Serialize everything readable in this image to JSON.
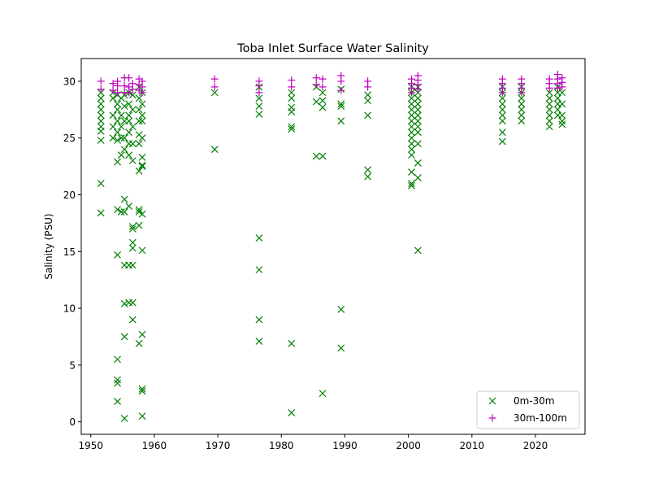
{
  "chart_data": {
    "type": "scatter",
    "title": "Toba Inlet Surface Water Salinity",
    "xlabel": "",
    "ylabel": "Salinity (PSU)",
    "xlim": [
      1948.5,
      2027.8
    ],
    "ylim": [
      -1.1,
      32.0
    ],
    "xticks": [
      1950,
      1960,
      1970,
      1980,
      1990,
      2000,
      2010,
      2020
    ],
    "yticks": [
      0,
      5,
      10,
      15,
      20,
      25,
      30
    ],
    "grid": false,
    "legend_position": "lower-right",
    "series": [
      {
        "name": "0m-30m",
        "marker": "x",
        "color": "#008000",
        "points": [
          [
            1951.6,
            29.0
          ],
          [
            1951.6,
            28.5
          ],
          [
            1951.6,
            28.0
          ],
          [
            1951.6,
            27.5
          ],
          [
            1951.6,
            27.0
          ],
          [
            1951.6,
            26.5
          ],
          [
            1951.6,
            26.0
          ],
          [
            1951.6,
            25.6
          ],
          [
            1951.6,
            24.8
          ],
          [
            1951.6,
            21.0
          ],
          [
            1951.6,
            18.4
          ],
          [
            1953.5,
            29.0
          ],
          [
            1953.5,
            28.5
          ],
          [
            1953.5,
            27.0
          ],
          [
            1953.5,
            26.0
          ],
          [
            1953.5,
            25.0
          ],
          [
            1954.2,
            28.8
          ],
          [
            1954.2,
            28.0
          ],
          [
            1954.2,
            27.5
          ],
          [
            1954.2,
            26.5
          ],
          [
            1954.2,
            25.5
          ],
          [
            1954.2,
            24.8
          ],
          [
            1954.2,
            22.9
          ],
          [
            1954.2,
            18.7
          ],
          [
            1954.2,
            14.7
          ],
          [
            1954.2,
            5.5
          ],
          [
            1954.2,
            3.7
          ],
          [
            1954.2,
            3.4
          ],
          [
            1954.2,
            1.8
          ],
          [
            1954.8,
            28.5
          ],
          [
            1954.8,
            27.0
          ],
          [
            1954.8,
            26.0
          ],
          [
            1954.8,
            25.0
          ],
          [
            1954.8,
            23.5
          ],
          [
            1954.8,
            18.5
          ],
          [
            1955.3,
            28.8
          ],
          [
            1955.3,
            27.8
          ],
          [
            1955.3,
            26.5
          ],
          [
            1955.3,
            25.0
          ],
          [
            1955.3,
            24.0
          ],
          [
            1955.3,
            19.6
          ],
          [
            1955.3,
            18.5
          ],
          [
            1955.3,
            13.8
          ],
          [
            1955.3,
            10.4
          ],
          [
            1955.3,
            7.5
          ],
          [
            1955.3,
            0.3
          ],
          [
            1956.0,
            29.0
          ],
          [
            1956.0,
            28.0
          ],
          [
            1956.0,
            27.0
          ],
          [
            1956.0,
            26.5
          ],
          [
            1956.0,
            25.5
          ],
          [
            1956.0,
            24.5
          ],
          [
            1956.0,
            23.5
          ],
          [
            1956.0,
            19.0
          ],
          [
            1956.0,
            13.8
          ],
          [
            1956.0,
            10.5
          ],
          [
            1956.6,
            28.8
          ],
          [
            1956.6,
            27.5
          ],
          [
            1956.6,
            26.0
          ],
          [
            1956.6,
            24.5
          ],
          [
            1956.6,
            23.0
          ],
          [
            1956.6,
            17.2
          ],
          [
            1956.6,
            17.0
          ],
          [
            1956.6,
            15.8
          ],
          [
            1956.6,
            15.3
          ],
          [
            1956.6,
            13.8
          ],
          [
            1956.6,
            10.5
          ],
          [
            1956.6,
            9.0
          ],
          [
            1957.6,
            29.5
          ],
          [
            1957.6,
            28.5
          ],
          [
            1957.6,
            27.5
          ],
          [
            1957.6,
            26.5
          ],
          [
            1957.6,
            25.3
          ],
          [
            1957.6,
            24.5
          ],
          [
            1957.6,
            22.1
          ],
          [
            1957.6,
            18.7
          ],
          [
            1957.6,
            18.5
          ],
          [
            1957.6,
            17.3
          ],
          [
            1957.6,
            6.9
          ],
          [
            1958.1,
            29.0
          ],
          [
            1958.1,
            28.0
          ],
          [
            1958.1,
            27.0
          ],
          [
            1958.1,
            26.5
          ],
          [
            1958.1,
            25.0
          ],
          [
            1958.1,
            23.3
          ],
          [
            1958.1,
            22.6
          ],
          [
            1958.1,
            22.5
          ],
          [
            1958.1,
            18.3
          ],
          [
            1958.1,
            15.1
          ],
          [
            1958.1,
            7.7
          ],
          [
            1958.1,
            2.9
          ],
          [
            1958.1,
            2.7
          ],
          [
            1958.1,
            0.5
          ],
          [
            1969.5,
            29.0
          ],
          [
            1969.5,
            24.0
          ],
          [
            1976.5,
            29.5
          ],
          [
            1976.5,
            28.5
          ],
          [
            1976.5,
            27.8
          ],
          [
            1976.5,
            27.1
          ],
          [
            1976.5,
            16.2
          ],
          [
            1976.5,
            13.4
          ],
          [
            1976.5,
            9.0
          ],
          [
            1976.5,
            7.1
          ],
          [
            1981.6,
            29.0
          ],
          [
            1981.6,
            28.5
          ],
          [
            1981.6,
            27.7
          ],
          [
            1981.6,
            27.3
          ],
          [
            1981.6,
            26.0
          ],
          [
            1981.6,
            25.8
          ],
          [
            1981.6,
            6.9
          ],
          [
            1981.6,
            0.8
          ],
          [
            1985.5,
            29.5
          ],
          [
            1985.5,
            28.2
          ],
          [
            1985.5,
            23.4
          ],
          [
            1986.5,
            29.0
          ],
          [
            1986.5,
            28.3
          ],
          [
            1986.5,
            27.7
          ],
          [
            1986.5,
            23.4
          ],
          [
            1986.5,
            2.5
          ],
          [
            1989.4,
            29.3
          ],
          [
            1989.4,
            28.0
          ],
          [
            1989.4,
            27.8
          ],
          [
            1989.4,
            26.5
          ],
          [
            1989.4,
            9.9
          ],
          [
            1989.4,
            6.5
          ],
          [
            1993.6,
            28.8
          ],
          [
            1993.6,
            28.3
          ],
          [
            1993.6,
            27.0
          ],
          [
            1993.6,
            22.2
          ],
          [
            1993.6,
            21.6
          ],
          [
            2000.5,
            29.5
          ],
          [
            2000.5,
            29.0
          ],
          [
            2000.5,
            28.5
          ],
          [
            2000.5,
            28.0
          ],
          [
            2000.5,
            27.5
          ],
          [
            2000.5,
            27.0
          ],
          [
            2000.5,
            26.5
          ],
          [
            2000.5,
            26.0
          ],
          [
            2000.5,
            25.5
          ],
          [
            2000.5,
            25.0
          ],
          [
            2000.5,
            24.5
          ],
          [
            2000.5,
            24.0
          ],
          [
            2000.5,
            23.5
          ],
          [
            2000.5,
            22.0
          ],
          [
            2000.5,
            21.0
          ],
          [
            2000.5,
            20.8
          ],
          [
            2001.5,
            29.5
          ],
          [
            2001.5,
            29.0
          ],
          [
            2001.5,
            28.5
          ],
          [
            2001.5,
            28.0
          ],
          [
            2001.5,
            27.5
          ],
          [
            2001.5,
            27.0
          ],
          [
            2001.5,
            26.5
          ],
          [
            2001.5,
            26.0
          ],
          [
            2001.5,
            25.5
          ],
          [
            2001.5,
            24.5
          ],
          [
            2001.5,
            22.8
          ],
          [
            2001.5,
            21.5
          ],
          [
            2001.5,
            15.1
          ],
          [
            2014.8,
            29.5
          ],
          [
            2014.8,
            29.0
          ],
          [
            2014.8,
            28.5
          ],
          [
            2014.8,
            28.0
          ],
          [
            2014.8,
            27.5
          ],
          [
            2014.8,
            27.0
          ],
          [
            2014.8,
            26.5
          ],
          [
            2014.8,
            25.5
          ],
          [
            2014.8,
            24.7
          ],
          [
            2017.8,
            29.5
          ],
          [
            2017.8,
            29.0
          ],
          [
            2017.8,
            28.5
          ],
          [
            2017.8,
            28.0
          ],
          [
            2017.8,
            27.5
          ],
          [
            2017.8,
            27.0
          ],
          [
            2017.8,
            26.5
          ],
          [
            2022.2,
            29.0
          ],
          [
            2022.2,
            28.5
          ],
          [
            2022.2,
            28.0
          ],
          [
            2022.2,
            27.5
          ],
          [
            2022.2,
            27.0
          ],
          [
            2022.2,
            26.5
          ],
          [
            2022.2,
            26.0
          ],
          [
            2023.5,
            29.5
          ],
          [
            2023.5,
            29.0
          ],
          [
            2023.5,
            28.5
          ],
          [
            2023.5,
            28.0
          ],
          [
            2023.5,
            27.5
          ],
          [
            2023.5,
            27.0
          ],
          [
            2024.2,
            29.0
          ],
          [
            2024.2,
            28.0
          ],
          [
            2024.2,
            27.0
          ],
          [
            2024.2,
            26.5
          ],
          [
            2024.2,
            26.2
          ]
        ]
      },
      {
        "name": "30m-100m",
        "marker": "+",
        "color": "#bf00bf",
        "points": [
          [
            1951.6,
            30.0
          ],
          [
            1951.6,
            29.3
          ],
          [
            1953.5,
            29.8
          ],
          [
            1953.5,
            29.2
          ],
          [
            1954.2,
            30.0
          ],
          [
            1954.2,
            29.6
          ],
          [
            1954.2,
            29.0
          ],
          [
            1955.3,
            30.3
          ],
          [
            1955.3,
            29.6
          ],
          [
            1955.3,
            29.0
          ],
          [
            1956.0,
            30.3
          ],
          [
            1956.0,
            29.5
          ],
          [
            1956.0,
            29.0
          ],
          [
            1956.6,
            29.8
          ],
          [
            1956.6,
            29.3
          ],
          [
            1957.6,
            30.2
          ],
          [
            1957.6,
            29.7
          ],
          [
            1957.6,
            29.2
          ],
          [
            1958.1,
            30.0
          ],
          [
            1958.1,
            29.5
          ],
          [
            1958.1,
            29.0
          ],
          [
            1969.5,
            30.2
          ],
          [
            1969.5,
            29.5
          ],
          [
            1976.5,
            30.0
          ],
          [
            1976.5,
            29.6
          ],
          [
            1976.5,
            29.0
          ],
          [
            1981.6,
            30.1
          ],
          [
            1981.6,
            29.5
          ],
          [
            1985.5,
            30.3
          ],
          [
            1985.5,
            29.7
          ],
          [
            1986.5,
            30.2
          ],
          [
            1986.5,
            29.5
          ],
          [
            1989.4,
            30.5
          ],
          [
            1989.4,
            30.0
          ],
          [
            1989.4,
            29.2
          ],
          [
            1993.6,
            30.0
          ],
          [
            1993.6,
            29.5
          ],
          [
            2000.5,
            30.2
          ],
          [
            2000.5,
            29.8
          ],
          [
            2000.5,
            29.4
          ],
          [
            2000.5,
            29.0
          ],
          [
            2001.5,
            30.5
          ],
          [
            2001.5,
            30.1
          ],
          [
            2001.5,
            29.7
          ],
          [
            2001.5,
            29.3
          ],
          [
            2014.8,
            30.2
          ],
          [
            2014.8,
            29.8
          ],
          [
            2014.8,
            29.4
          ],
          [
            2014.8,
            29.0
          ],
          [
            2017.8,
            30.2
          ],
          [
            2017.8,
            29.8
          ],
          [
            2017.8,
            29.4
          ],
          [
            2017.8,
            29.0
          ],
          [
            2022.2,
            30.2
          ],
          [
            2022.2,
            29.8
          ],
          [
            2022.2,
            29.4
          ],
          [
            2023.5,
            30.6
          ],
          [
            2023.5,
            30.2
          ],
          [
            2023.5,
            29.8
          ],
          [
            2023.5,
            29.4
          ],
          [
            2024.2,
            30.3
          ],
          [
            2024.2,
            29.9
          ],
          [
            2024.2,
            29.5
          ]
        ]
      }
    ]
  }
}
